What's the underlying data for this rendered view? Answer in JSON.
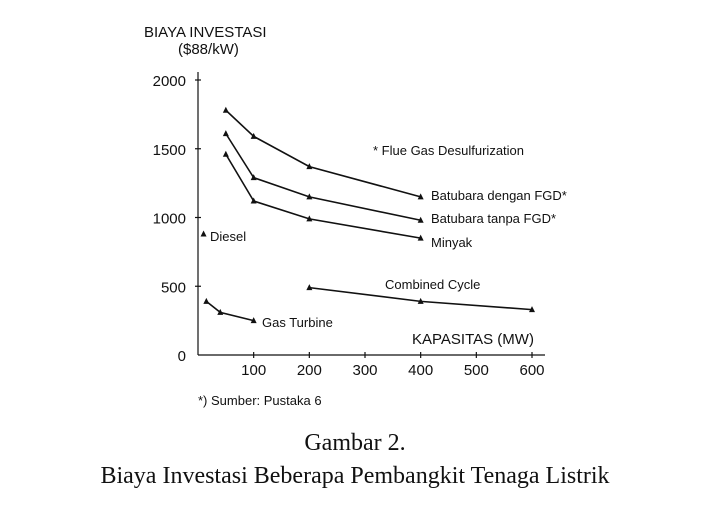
{
  "chart_data": {
    "type": "line",
    "ytitle_line1": "BIAYA INVESTASI",
    "ytitle_line2": "($88/kW)",
    "xlabel": "KAPASITAS (MW)",
    "xlim": [
      0,
      600
    ],
    "ylim": [
      0,
      2000
    ],
    "yticks": [
      {
        "value": 0,
        "label": "0"
      },
      {
        "value": 500,
        "label": "500"
      },
      {
        "value": 1000,
        "label": "1000"
      },
      {
        "value": 1500,
        "label": "1500"
      },
      {
        "value": 2000,
        "label": "2000"
      }
    ],
    "xticks": [
      {
        "value": 100,
        "label": "100"
      },
      {
        "value": 200,
        "label": "200"
      },
      {
        "value": 300,
        "label": "300"
      },
      {
        "value": 400,
        "label": "400"
      },
      {
        "value": 500,
        "label": "500"
      },
      {
        "value": 600,
        "label": "600"
      }
    ],
    "series": [
      {
        "name": "Batubara dengan FGD*",
        "x": [
          50,
          100,
          200,
          400
        ],
        "y": [
          1780,
          1590,
          1370,
          1150
        ]
      },
      {
        "name": "Batubara tanpa FGD*",
        "x": [
          50,
          100,
          200,
          400
        ],
        "y": [
          1610,
          1290,
          1150,
          980
        ]
      },
      {
        "name": "Minyak",
        "x": [
          50,
          100,
          200,
          400
        ],
        "y": [
          1460,
          1120,
          990,
          850
        ]
      },
      {
        "name": "Diesel",
        "x": [
          10
        ],
        "y": [
          880
        ]
      },
      {
        "name": "Gas Turbine",
        "x": [
          15,
          40,
          100
        ],
        "y": [
          390,
          310,
          250
        ]
      },
      {
        "name": "Combined Cycle",
        "x": [
          200,
          400,
          600
        ],
        "y": [
          490,
          390,
          330
        ]
      }
    ],
    "annotation": "* Flue Gas Desulfurization"
  },
  "source_note": "*) Sumber: Pustaka 6",
  "caption": {
    "line1": "Gambar 2.",
    "line2": "Biaya Investasi Beberapa Pembangkit Tenaga Listrik"
  }
}
